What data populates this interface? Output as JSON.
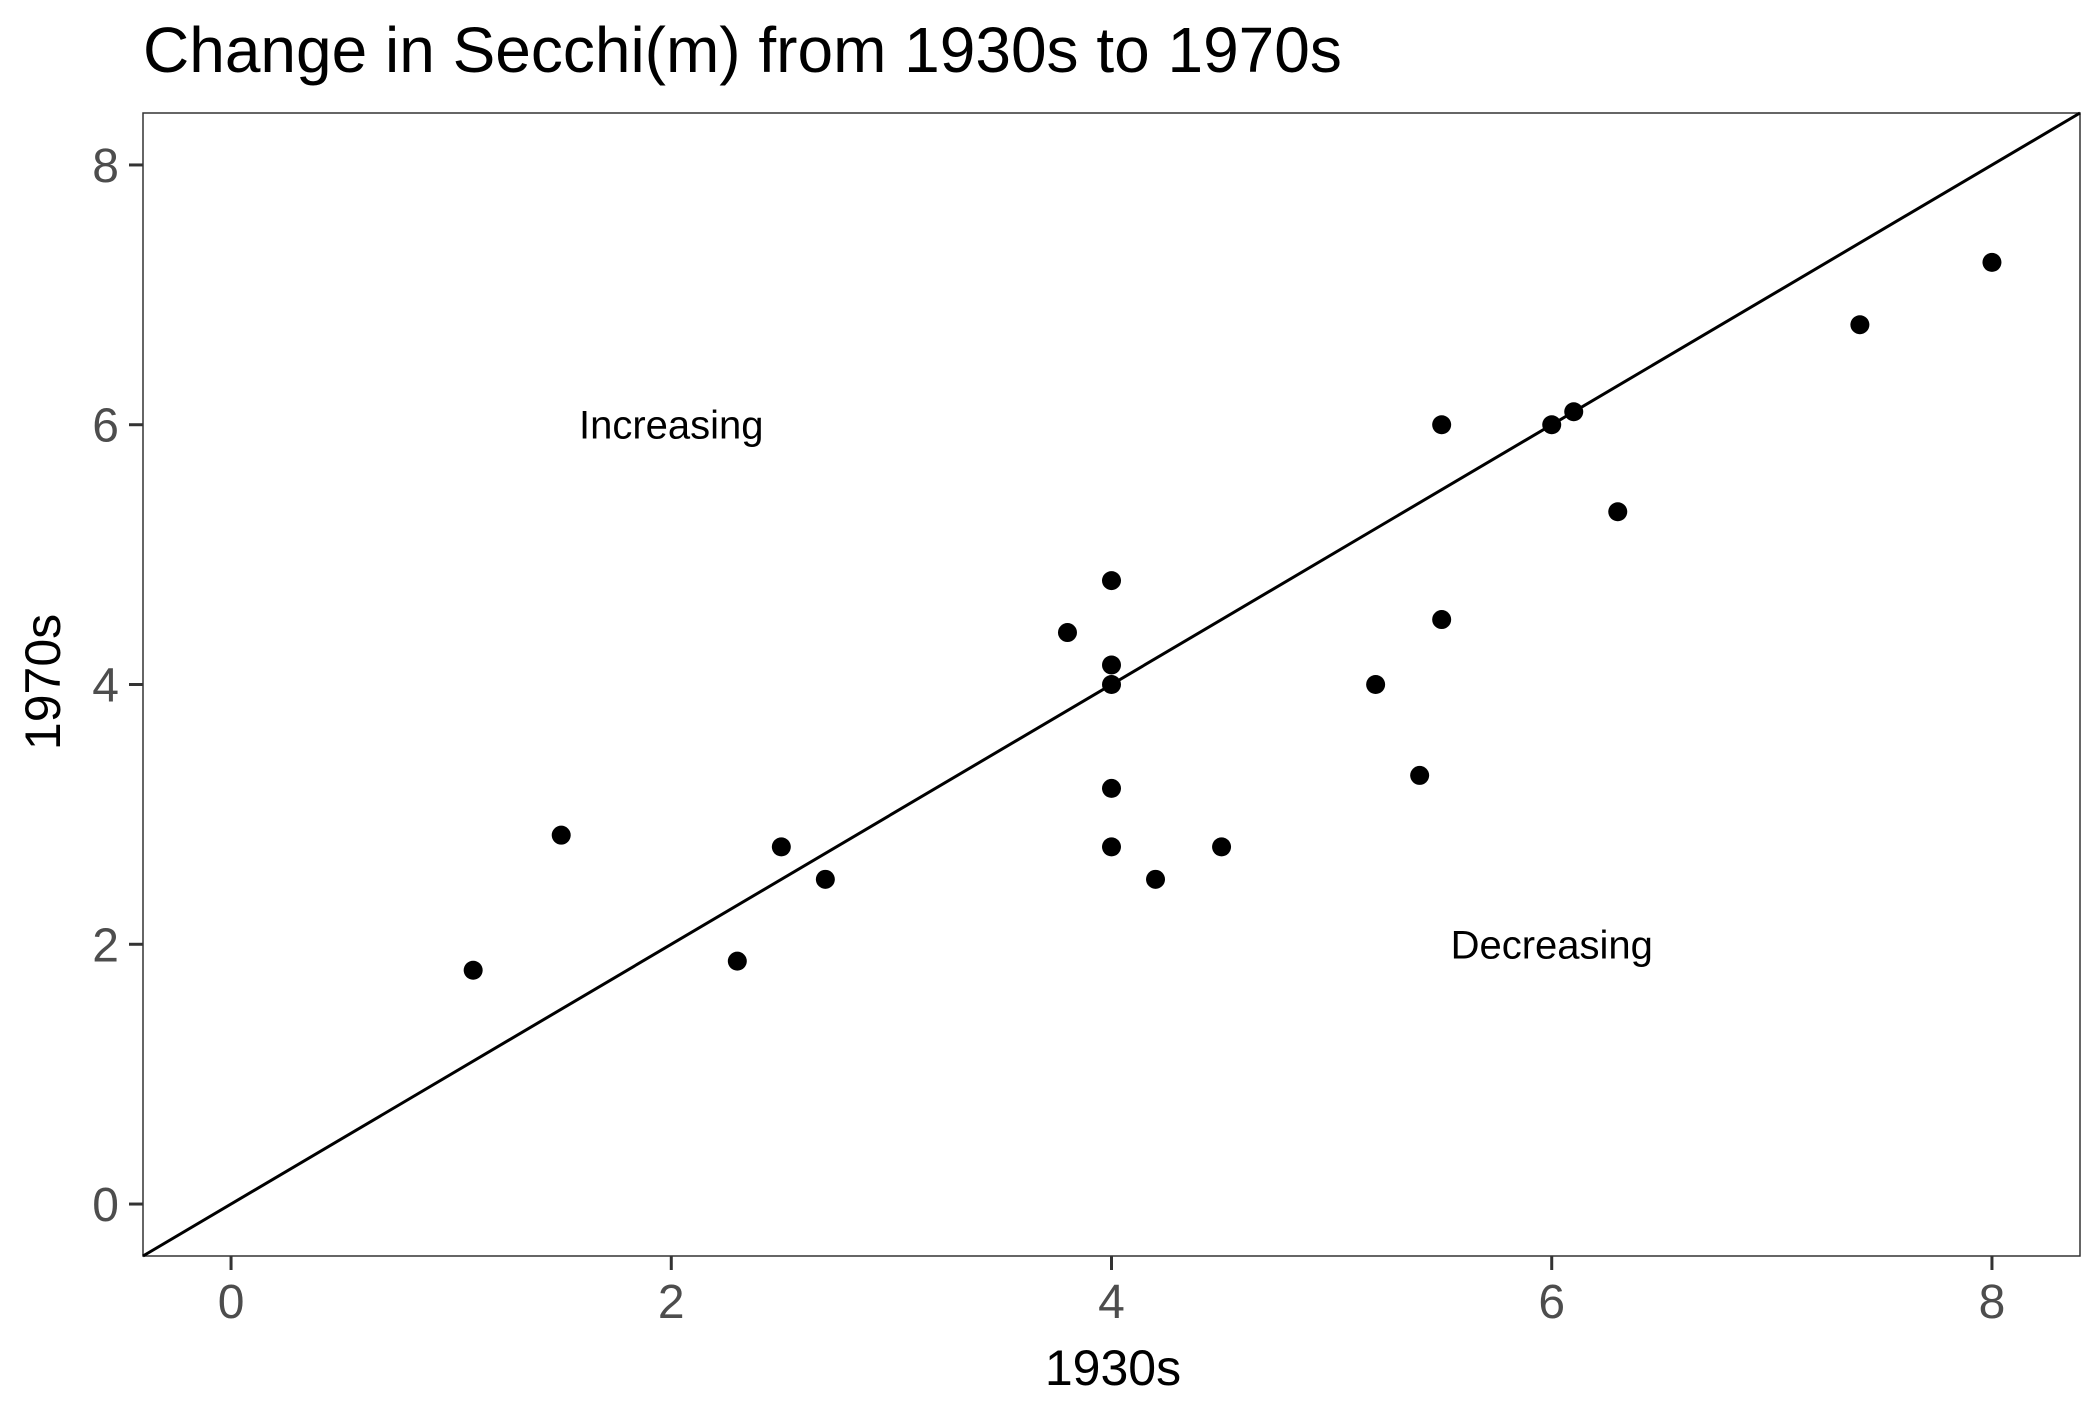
{
  "chart_data": {
    "type": "scatter",
    "title": "Change in Secchi(m) from 1930s to 1970s",
    "xlabel": "1930s",
    "ylabel": "1970s",
    "xlim": [
      -0.4,
      8.4
    ],
    "ylim": [
      -0.4,
      8.4
    ],
    "xticks": [
      "0",
      "2",
      "4",
      "6",
      "8"
    ],
    "yticks": [
      "0",
      "2",
      "4",
      "6",
      "8"
    ],
    "grid": false,
    "reference_line": {
      "type": "identity",
      "slope": 1,
      "intercept": 0
    },
    "annotations": [
      {
        "text": "Increasing",
        "x": 2.0,
        "y": 6.0
      },
      {
        "text": "Decreasing",
        "x": 6.0,
        "y": 2.0
      }
    ],
    "points": [
      {
        "x": 1.1,
        "y": 1.8
      },
      {
        "x": 1.5,
        "y": 2.84
      },
      {
        "x": 2.3,
        "y": 1.87
      },
      {
        "x": 2.5,
        "y": 2.75
      },
      {
        "x": 2.7,
        "y": 2.5
      },
      {
        "x": 3.8,
        "y": 4.4
      },
      {
        "x": 4.0,
        "y": 4.8
      },
      {
        "x": 4.0,
        "y": 4.15
      },
      {
        "x": 4.0,
        "y": 4.0
      },
      {
        "x": 4.0,
        "y": 3.2
      },
      {
        "x": 4.0,
        "y": 2.75
      },
      {
        "x": 4.2,
        "y": 2.5
      },
      {
        "x": 4.5,
        "y": 2.75
      },
      {
        "x": 5.2,
        "y": 4.0
      },
      {
        "x": 5.4,
        "y": 3.3
      },
      {
        "x": 5.5,
        "y": 6.0
      },
      {
        "x": 5.5,
        "y": 4.5
      },
      {
        "x": 6.0,
        "y": 6.0
      },
      {
        "x": 6.1,
        "y": 6.1
      },
      {
        "x": 6.3,
        "y": 5.33
      },
      {
        "x": 7.4,
        "y": 6.77
      },
      {
        "x": 8.0,
        "y": 7.25
      }
    ]
  }
}
